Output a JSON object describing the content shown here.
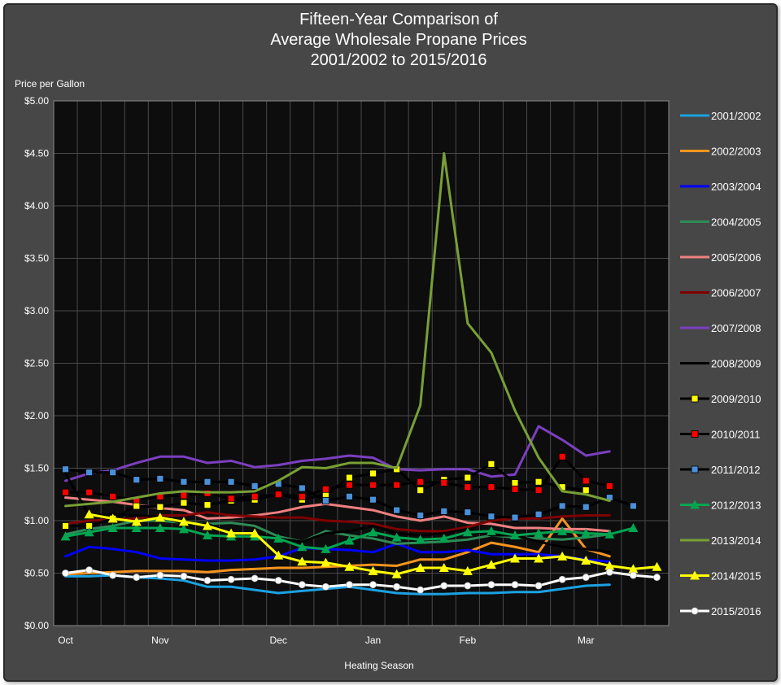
{
  "chart_data": {
    "type": "line",
    "title": [
      "Fifteen-Year Comparison of",
      "Average Wholesale Propane Prices",
      "2001/2002  to 2015/2016"
    ],
    "ylabel": "Price per Gallon",
    "xlabel": "Heating Season",
    "ylim": [
      0,
      5
    ],
    "yticks": [
      "$0.00",
      "$0.50",
      "$1.00",
      "$1.50",
      "$2.00",
      "$2.50",
      "$3.00",
      "$3.50",
      "$4.00",
      "$4.50",
      "$5.00"
    ],
    "x_period_count": 26,
    "x_period_unit": "week",
    "x_labels": [
      {
        "label": "Oct",
        "index": 0
      },
      {
        "label": "Nov",
        "index": 4
      },
      {
        "label": "Dec",
        "index": 9
      },
      {
        "label": "Jan",
        "index": 13
      },
      {
        "label": "Feb",
        "index": 17
      },
      {
        "label": "Mar",
        "index": 22
      }
    ],
    "grid": true,
    "legend_position": "right",
    "series": [
      {
        "name": "2001/2002",
        "color": "#1ba1e2",
        "marker": "none",
        "values": [
          0.47,
          0.47,
          0.48,
          0.46,
          0.45,
          0.43,
          0.37,
          0.37,
          0.34,
          0.31,
          0.33,
          0.35,
          0.37,
          0.34,
          0.31,
          0.3,
          0.3,
          0.31,
          0.31,
          0.32,
          0.32,
          0.35,
          0.38,
          0.39,
          null,
          null
        ]
      },
      {
        "name": "2002/2003",
        "color": "#f7941d",
        "marker": "none",
        "values": [
          0.49,
          0.5,
          0.51,
          0.52,
          0.52,
          0.52,
          0.51,
          0.53,
          0.54,
          0.55,
          0.55,
          0.56,
          0.57,
          0.58,
          0.57,
          0.63,
          0.63,
          0.7,
          0.79,
          0.75,
          0.7,
          1.02,
          0.73,
          0.66,
          null,
          null
        ]
      },
      {
        "name": "2003/2004",
        "color": "#0000ff",
        "marker": "none",
        "values": [
          0.66,
          0.75,
          0.73,
          0.7,
          0.64,
          0.63,
          0.62,
          0.62,
          0.63,
          0.66,
          0.74,
          0.73,
          0.72,
          0.7,
          0.78,
          0.7,
          0.7,
          0.72,
          0.68,
          0.68,
          0.68,
          0.66,
          0.63,
          0.61,
          null,
          null
        ]
      },
      {
        "name": "2004/2005",
        "color": "#2e8b57",
        "marker": "none",
        "values": [
          0.87,
          0.92,
          0.95,
          1.0,
          1.0,
          0.98,
          0.97,
          0.98,
          0.95,
          0.85,
          0.8,
          0.9,
          0.86,
          0.83,
          0.78,
          0.79,
          0.8,
          0.82,
          0.86,
          0.84,
          0.83,
          0.82,
          0.84,
          0.87,
          null,
          null
        ]
      },
      {
        "name": "2005/2006",
        "color": "#f08080",
        "marker": "none",
        "values": [
          1.22,
          1.2,
          1.18,
          1.15,
          1.12,
          1.1,
          1.02,
          1.03,
          1.05,
          1.08,
          1.13,
          1.16,
          1.13,
          1.1,
          1.04,
          1.0,
          1.04,
          0.98,
          0.97,
          0.93,
          0.93,
          0.92,
          0.92,
          0.9,
          null,
          null
        ]
      },
      {
        "name": "2006/2007",
        "color": "#800000",
        "marker": "none",
        "values": [
          0.97,
          1.0,
          1.01,
          1.02,
          1.05,
          1.05,
          1.08,
          1.05,
          1.04,
          1.03,
          1.03,
          1.0,
          0.99,
          0.97,
          0.92,
          0.9,
          0.9,
          0.94,
          1.0,
          1.02,
          1.02,
          1.04,
          1.05,
          1.05,
          null,
          null
        ]
      },
      {
        "name": "2007/2008",
        "color": "#7b3fc0",
        "marker": "none",
        "values": [
          1.38,
          1.45,
          1.48,
          1.55,
          1.61,
          1.61,
          1.55,
          1.57,
          1.51,
          1.53,
          1.57,
          1.59,
          1.62,
          1.6,
          1.49,
          1.48,
          1.49,
          1.49,
          1.42,
          1.44,
          1.9,
          1.77,
          1.62,
          1.66,
          null,
          null
        ]
      },
      {
        "name": "2008/2009",
        "color": "#000000",
        "marker": "none",
        "values": [
          1.45,
          1.05,
          1.06,
          1.05,
          1.04,
          0.97,
          0.97,
          0.88,
          0.88,
          0.83,
          0.8,
          0.88,
          0.9,
          0.95,
          0.88,
          0.86,
          0.88,
          0.92,
          0.86,
          0.86,
          0.8,
          0.75,
          0.73,
          0.7,
          null,
          null
        ]
      },
      {
        "name": "2009/2010",
        "color": "#000000",
        "marker": "square",
        "marker_color": "#ffff00",
        "values": [
          0.95,
          0.95,
          1.02,
          1.14,
          1.13,
          1.17,
          1.15,
          1.19,
          1.2,
          1.25,
          1.2,
          1.25,
          1.41,
          1.45,
          1.49,
          1.29,
          1.39,
          1.41,
          1.54,
          1.36,
          1.37,
          1.32,
          1.29,
          null,
          null,
          null
        ]
      },
      {
        "name": "2010/2011",
        "color": "#000000",
        "marker": "square",
        "marker_color": "#ff0000",
        "values": [
          1.27,
          1.27,
          1.23,
          1.2,
          1.23,
          1.24,
          1.26,
          1.21,
          1.23,
          1.25,
          1.23,
          1.3,
          1.34,
          1.34,
          1.34,
          1.37,
          1.36,
          1.32,
          1.32,
          1.3,
          1.29,
          1.61,
          1.38,
          1.33,
          null,
          null
        ]
      },
      {
        "name": "2011/2012",
        "color": "#000000",
        "marker": "square",
        "marker_color": "#4a90d9",
        "values": [
          1.49,
          1.46,
          1.46,
          1.39,
          1.4,
          1.37,
          1.37,
          1.37,
          1.33,
          1.35,
          1.31,
          1.19,
          1.23,
          1.2,
          1.1,
          1.05,
          1.09,
          1.08,
          1.04,
          1.03,
          1.06,
          1.14,
          1.13,
          1.22,
          1.14,
          null
        ]
      },
      {
        "name": "2012/2013",
        "color": "#00a550",
        "marker": "triangle",
        "marker_color": "#00a550",
        "values": [
          0.85,
          0.89,
          0.93,
          0.93,
          0.93,
          0.92,
          0.86,
          0.85,
          0.85,
          0.83,
          0.75,
          0.73,
          0.81,
          0.89,
          0.84,
          0.82,
          0.83,
          0.89,
          0.9,
          0.86,
          0.88,
          0.9,
          0.88,
          0.87,
          0.93,
          null
        ]
      },
      {
        "name": "2013/2014",
        "color": "#78a035",
        "marker": "none",
        "values": [
          1.14,
          1.16,
          1.18,
          1.22,
          1.26,
          1.28,
          1.27,
          1.27,
          1.28,
          1.38,
          1.51,
          1.5,
          1.55,
          1.55,
          1.5,
          2.1,
          4.5,
          2.88,
          2.6,
          2.05,
          1.6,
          1.28,
          1.25,
          1.19,
          null,
          null
        ]
      },
      {
        "name": "2014/2015",
        "color": "#ffff00",
        "marker": "triangle",
        "marker_color": "#ffff00",
        "values": [
          null,
          1.06,
          1.02,
          0.99,
          1.03,
          0.99,
          0.95,
          0.88,
          0.88,
          0.67,
          0.61,
          0.6,
          0.56,
          0.52,
          0.49,
          0.55,
          0.55,
          0.52,
          0.58,
          0.64,
          0.64,
          0.66,
          0.62,
          0.57,
          0.54,
          0.56
        ]
      },
      {
        "name": "2015/2016",
        "color": "#ffffff",
        "marker": "circle",
        "marker_color": "#ffffff",
        "values": [
          0.5,
          0.53,
          0.48,
          0.46,
          0.48,
          0.47,
          0.43,
          0.44,
          0.45,
          0.43,
          0.39,
          0.37,
          0.39,
          0.39,
          0.37,
          0.34,
          0.38,
          0.38,
          0.39,
          0.39,
          0.38,
          0.44,
          0.46,
          0.51,
          0.48,
          0.46
        ]
      }
    ]
  }
}
